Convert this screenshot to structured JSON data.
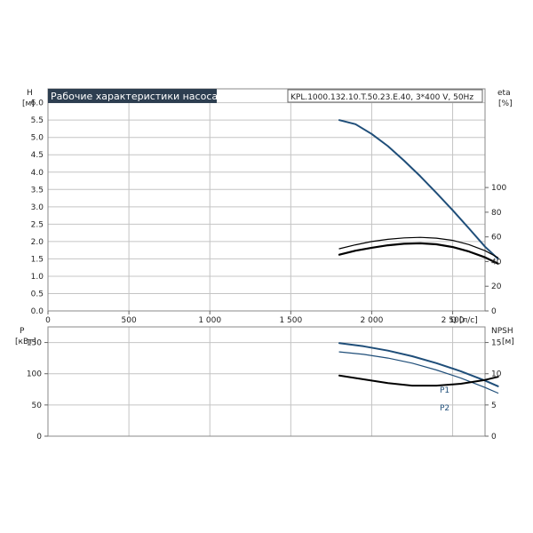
{
  "chart_data": {
    "type": "line",
    "title": "Рабочие характеристики насоса",
    "model": "KPL.1000.132.10.T.50.23.E.40, 3*400 V, 50Hz",
    "colors": {
      "blue": "#1f4e79",
      "black": "#000000",
      "grid": "#c4c4c4"
    },
    "top": {
      "ylabel_left": "H",
      "yunit_left": "[м]",
      "ylabel_right": "eta",
      "yunit_right": "[%]",
      "xlabel": "Q [л/с]",
      "xlim": [
        0,
        2700
      ],
      "xticks": [
        0,
        500,
        1000,
        1500,
        2000,
        2500
      ],
      "xtick_labels": [
        "0",
        "500",
        "1 000",
        "1 500",
        "2 000",
        "2 500"
      ],
      "ylim_left": [
        0,
        6.4
      ],
      "yticks_left": [
        0,
        0.5,
        1.0,
        1.5,
        2.0,
        2.5,
        3.0,
        3.5,
        4.0,
        4.5,
        5.0,
        5.5,
        6.0
      ],
      "ytick_labels_left": [
        "0.0",
        "0.5",
        "1.0",
        "1.5",
        "2.0",
        "2.5",
        "3.0",
        "3.5",
        "4.0",
        "4.5",
        "5.0",
        "5.5",
        "6.0"
      ],
      "ylim_right": [
        0,
        180
      ],
      "yticks_right": [
        0,
        20,
        40,
        60,
        80,
        100
      ],
      "ytick_labels_right": [
        "0",
        "20",
        "40",
        "60",
        "80",
        "100"
      ],
      "series": [
        {
          "axis": "left",
          "color": "#1f4e79",
          "width": 2,
          "x": [
            1800,
            1900,
            2000,
            2100,
            2200,
            2300,
            2400,
            2500,
            2600,
            2700,
            2780
          ],
          "y": [
            5.5,
            5.38,
            5.1,
            4.75,
            4.33,
            3.88,
            3.4,
            2.9,
            2.38,
            1.85,
            1.5
          ]
        },
        {
          "axis": "right",
          "color": "#000000",
          "width": 1.2,
          "x": [
            1800,
            1900,
            2000,
            2100,
            2200,
            2300,
            2400,
            2500,
            2600,
            2700,
            2780
          ],
          "y": [
            50.4,
            53.6,
            56.2,
            58.0,
            59.2,
            59.6,
            59.0,
            57.2,
            53.8,
            48.8,
            43.2
          ]
        },
        {
          "axis": "right",
          "color": "#000000",
          "width": 2.2,
          "x": [
            1800,
            1900,
            2000,
            2100,
            2200,
            2300,
            2400,
            2500,
            2600,
            2700,
            2780
          ],
          "y": [
            45.6,
            48.8,
            51.2,
            53.2,
            54.4,
            54.8,
            54.0,
            51.8,
            48.2,
            43.4,
            38.4
          ]
        }
      ]
    },
    "bottom": {
      "ylabel_left": "P",
      "yunit_left": "[кВт]",
      "ylabel_right": "NPSH",
      "yunit_right": "[м]",
      "ylim_left": [
        0,
        175
      ],
      "yticks_left": [
        0,
        50,
        100,
        150
      ],
      "ytick_labels_left": [
        "0",
        "50",
        "100",
        "150"
      ],
      "ylim_right": [
        0,
        17.5
      ],
      "yticks_right": [
        0,
        5,
        10,
        15
      ],
      "ytick_labels_right": [
        "0",
        "5",
        "10",
        "15"
      ],
      "series": [
        {
          "name": "P1",
          "axis": "left",
          "color": "#1f4e79",
          "width": 2,
          "x": [
            1800,
            1950,
            2100,
            2250,
            2400,
            2550,
            2700,
            2780
          ],
          "y": [
            149,
            144,
            137,
            128,
            117,
            104,
            89,
            80
          ]
        },
        {
          "name": "P2",
          "axis": "left",
          "color": "#1f4e79",
          "width": 1.2,
          "x": [
            1800,
            1950,
            2100,
            2250,
            2400,
            2550,
            2700,
            2780
          ],
          "y": [
            135,
            131,
            125,
            117,
            106,
            93,
            78,
            69
          ]
        },
        {
          "axis": "right",
          "color": "#000000",
          "width": 2,
          "x": [
            1800,
            1950,
            2100,
            2250,
            2400,
            2550,
            2700,
            2780
          ],
          "y": [
            9.7,
            9.1,
            8.5,
            8.1,
            8.1,
            8.4,
            9.0,
            9.5
          ]
        }
      ]
    }
  }
}
